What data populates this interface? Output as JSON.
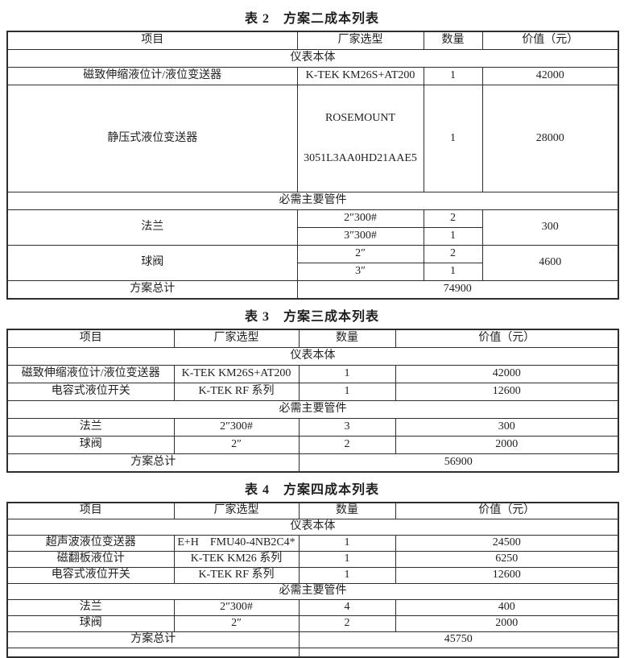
{
  "page": {
    "background": "#ffffff",
    "text_color": "#1f1f1f",
    "border_color": "#2d2d2d"
  },
  "table2": {
    "title": "表 2　方案二成本列表",
    "headers": [
      "项目",
      "厂家选型",
      "数量",
      "价值（元）"
    ],
    "section_instruments": "仪表本体",
    "section_fittings": "必需主要管件",
    "row_magnetostrictive": {
      "item": "磁致伸缩液位计/液位变送器",
      "model": "K-TEK KM26S+AT200",
      "qty": "1",
      "value": "42000"
    },
    "row_static_pressure": {
      "item": "静压式液位变送器",
      "model_line1": "ROSEMOUNT",
      "model_line2": "3051L3AA0HD21AAE5",
      "qty": "1",
      "value": "28000"
    },
    "row_flange": {
      "item": "法兰",
      "spec1": "2″300#",
      "qty1": "2",
      "spec2": "3″300#",
      "qty2": "1",
      "value": "300"
    },
    "row_ball_valve": {
      "item": "球阀",
      "spec1": "2″",
      "qty1": "2",
      "spec2": "3″",
      "qty2": "1",
      "value": "4600"
    },
    "total": {
      "label": "方案总计",
      "value": "74900"
    }
  },
  "table3": {
    "title": "表 3　方案三成本列表",
    "headers": [
      "项目",
      "厂家选型",
      "数量",
      "价值（元）"
    ],
    "section_instruments": "仪表本体",
    "section_fittings": "必需主要管件",
    "instrument_rows": [
      {
        "item": "磁致伸缩液位计/液位变送器",
        "model": "K-TEK KM26S+AT200",
        "qty": "1",
        "value": "42000"
      },
      {
        "item": "电容式液位开关",
        "model": "K-TEK RF 系列",
        "qty": "1",
        "value": "12600"
      }
    ],
    "fitting_rows": [
      {
        "item": "法兰",
        "model": "2″300#",
        "qty": "3",
        "value": "300"
      },
      {
        "item": "球阀",
        "model": "2″",
        "qty": "2",
        "value": "2000"
      }
    ],
    "total": {
      "label": "方案总计",
      "value": "56900"
    }
  },
  "table4": {
    "title": "表 4　方案四成本列表",
    "headers": [
      "项目",
      "厂家选型",
      "数量",
      "价值（元）"
    ],
    "section_instruments": "仪表本体",
    "section_fittings": "必需主要管件",
    "instrument_rows": [
      {
        "item": "超声波液位变送器",
        "model": "E+H　FMU40-4NB2C4*",
        "qty": "1",
        "value": "24500"
      },
      {
        "item": "磁翻板液位计",
        "model": "K-TEK KM26 系列",
        "qty": "1",
        "value": "6250"
      },
      {
        "item": "电容式液位开关",
        "model": "K-TEK RF 系列",
        "qty": "1",
        "value": "12600"
      }
    ],
    "fitting_rows": [
      {
        "item": "法兰",
        "model": "2″300#",
        "qty": "4",
        "value": "400"
      },
      {
        "item": "球阀",
        "model": "2″",
        "qty": "2",
        "value": "2000"
      }
    ],
    "total": {
      "label": "方案总计",
      "value": "45750"
    }
  }
}
